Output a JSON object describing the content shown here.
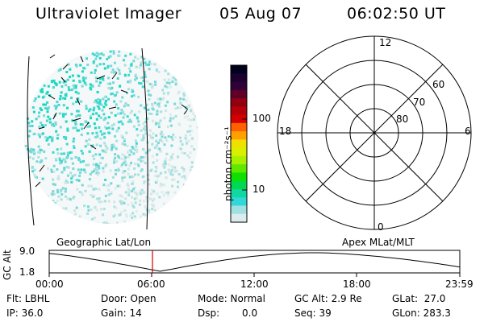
{
  "header": {
    "instrument": "Ultraviolet Imager",
    "date": "05 Aug 07",
    "time": "06:02:50 UT"
  },
  "imager": {
    "palette": [
      "#00001c",
      "#1c0030",
      "#300038",
      "#600028",
      "#900010",
      "#b40008",
      "#d40000",
      "#ff6000",
      "#ffa000",
      "#f0e000",
      "#d8f000",
      "#a8f000",
      "#60e800",
      "#10e000",
      "#00d850",
      "#10d8a0",
      "#30d8d8",
      "#a0e0e0",
      "#dcecec"
    ]
  },
  "colorbar": {
    "title": "photon cm⁻²s⁻¹",
    "tick_labels": [
      "100",
      "10"
    ]
  },
  "polar_plot": {
    "mlt_labels": [
      "12",
      "18",
      "6",
      "0"
    ],
    "lat_labels": [
      "60",
      "70",
      "80"
    ]
  },
  "timeline": {
    "left_label": "Geographic Lat/Lon",
    "right_label": "Apex MLat/MLT",
    "y_axis_title": "GC Alt",
    "y_tick_labels": [
      "9.0",
      "1.8"
    ],
    "x_tick_labels": [
      "00:00",
      "06:00",
      "12:00",
      "18:00",
      "23:59"
    ],
    "current_time_color": "#d00000"
  },
  "status": {
    "flt": "Flt: LBHL",
    "ip": "IP: 36.0",
    "door": "Door: Open",
    "gain": "Gain: 14",
    "mode": "Mode: Normal",
    "dsp_label": "Dsp:",
    "dsp_value": "0.0",
    "gc_alt": "GC Alt: 2.9 Re",
    "seq": "Seq: 39",
    "glat": "GLat:  27.0",
    "glon": "GLon: 283.3"
  }
}
